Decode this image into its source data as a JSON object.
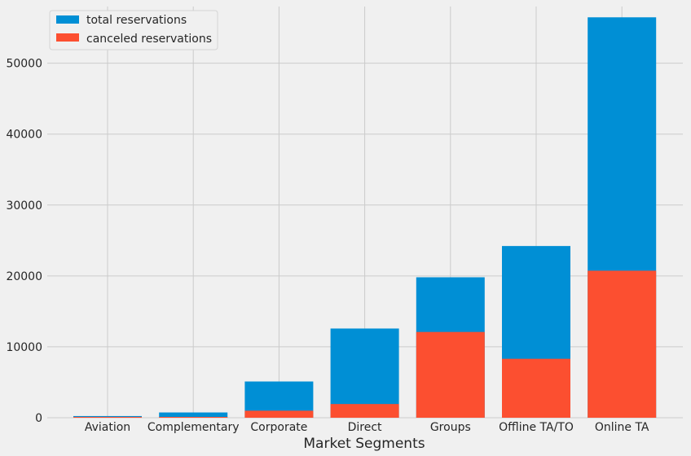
{
  "chart_data": {
    "type": "bar",
    "xlabel": "Market Segments",
    "ylabel": "",
    "ylim": [
      0,
      58000
    ],
    "yticks": [
      0,
      10000,
      20000,
      30000,
      40000,
      50000
    ],
    "categories": [
      "Aviation",
      "Complementary",
      "Corporate",
      "Direct",
      "Groups",
      "Offline TA/TO",
      "Online TA"
    ],
    "series": [
      {
        "name": "total reservations",
        "color": "#008fd5",
        "values": [
          237,
          743,
          5111,
          12582,
          19811,
          24219,
          56477
        ]
      },
      {
        "name": "canceled reservations",
        "color": "#fc4f30",
        "values": [
          52,
          97,
          992,
          1934,
          12097,
          8311,
          20739
        ]
      }
    ],
    "grid": true,
    "legend_position": "top-left"
  }
}
